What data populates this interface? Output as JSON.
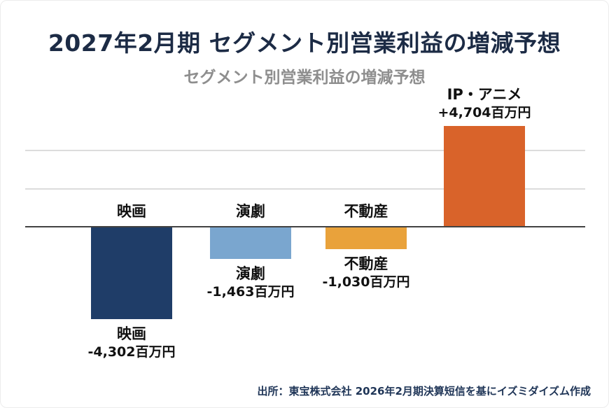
{
  "header": {
    "title": "2027年2月期 セグメント別営業利益の増減予想",
    "subtitle": "セグメント別営業利益の増減予想"
  },
  "chart_data": {
    "type": "bar",
    "title": "セグメント別営業利益の増減予想",
    "unit": "百万円",
    "categories": [
      "映画",
      "演劇",
      "不動産",
      "IP・アニメ"
    ],
    "values": [
      -4302,
      -1463,
      -1030,
      4704
    ],
    "value_labels": [
      "-4,302百万円",
      "-1,463百万円",
      "-1,030百万円",
      "+4,704百万円"
    ],
    "bar_colors": [
      "#1f3d68",
      "#7aa6cf",
      "#e9a23b",
      "#d9632a"
    ],
    "ylim": [
      -5000,
      5000
    ],
    "grid": true,
    "legend": "none",
    "zero_line": true
  },
  "footer": {
    "source": "出所：東宝株式会社 2026年2月期決算短信を基にイズミダイズム作成"
  }
}
